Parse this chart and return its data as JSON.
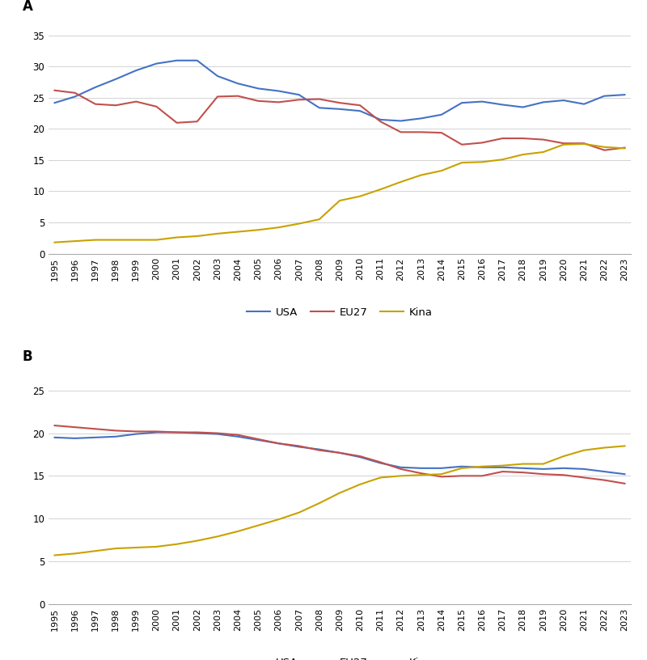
{
  "years": [
    1995,
    1996,
    1997,
    1998,
    1999,
    2000,
    2001,
    2002,
    2003,
    2004,
    2005,
    2006,
    2007,
    2008,
    2009,
    2010,
    2011,
    2012,
    2013,
    2014,
    2015,
    2016,
    2017,
    2018,
    2019,
    2020,
    2021,
    2022,
    2023
  ],
  "panel_A": {
    "USA": [
      24.2,
      25.2,
      26.7,
      28.0,
      29.4,
      30.5,
      31.0,
      31.0,
      28.5,
      27.3,
      26.5,
      26.1,
      25.5,
      23.4,
      23.2,
      22.9,
      21.5,
      21.3,
      21.7,
      22.3,
      24.2,
      24.4,
      23.9,
      23.5,
      24.3,
      24.6,
      24.0,
      25.3,
      25.5
    ],
    "EU27": [
      26.2,
      25.8,
      24.0,
      23.8,
      24.4,
      23.6,
      21.0,
      21.2,
      25.2,
      25.3,
      24.5,
      24.3,
      24.7,
      24.8,
      24.2,
      23.8,
      21.2,
      19.5,
      19.5,
      19.4,
      17.5,
      17.8,
      18.5,
      18.5,
      18.3,
      17.7,
      17.7,
      16.6,
      17.0
    ],
    "Kina": [
      1.8,
      2.0,
      2.2,
      2.2,
      2.2,
      2.2,
      2.6,
      2.8,
      3.2,
      3.5,
      3.8,
      4.2,
      4.8,
      5.5,
      8.5,
      9.2,
      10.3,
      11.5,
      12.6,
      13.3,
      14.6,
      14.7,
      15.1,
      15.9,
      16.3,
      17.5,
      17.6,
      17.1,
      16.9
    ]
  },
  "panel_B": {
    "USA": [
      19.5,
      19.4,
      19.5,
      19.6,
      19.9,
      20.1,
      20.1,
      20.0,
      19.9,
      19.6,
      19.2,
      18.8,
      18.4,
      18.1,
      17.7,
      17.2,
      16.5,
      16.0,
      15.9,
      15.9,
      16.1,
      16.0,
      16.0,
      15.9,
      15.8,
      15.9,
      15.8,
      15.5,
      15.2
    ],
    "EU27": [
      20.9,
      20.7,
      20.5,
      20.3,
      20.2,
      20.2,
      20.1,
      20.1,
      20.0,
      19.8,
      19.3,
      18.8,
      18.5,
      18.0,
      17.7,
      17.3,
      16.6,
      15.8,
      15.3,
      14.9,
      15.0,
      15.0,
      15.5,
      15.4,
      15.2,
      15.1,
      14.8,
      14.5,
      14.1
    ],
    "Kina": [
      5.7,
      5.9,
      6.2,
      6.5,
      6.6,
      6.7,
      7.0,
      7.4,
      7.9,
      8.5,
      9.2,
      9.9,
      10.7,
      11.8,
      13.0,
      14.0,
      14.8,
      15.0,
      15.1,
      15.2,
      15.9,
      16.1,
      16.2,
      16.4,
      16.4,
      17.3,
      18.0,
      18.3,
      18.5
    ]
  },
  "color_USA": "#4472C4",
  "color_EU27": "#C0504D",
  "color_Kina": "#C8A200",
  "line_width": 1.5,
  "label_A": "A",
  "label_B": "B",
  "legend_labels": [
    "USA",
    "EU27",
    "Kina"
  ],
  "ylim_A": [
    0,
    37
  ],
  "yticks_A": [
    0,
    5,
    10,
    15,
    20,
    25,
    30,
    35
  ],
  "ylim_B": [
    0,
    27
  ],
  "yticks_B": [
    0,
    5,
    10,
    15,
    20,
    25
  ]
}
